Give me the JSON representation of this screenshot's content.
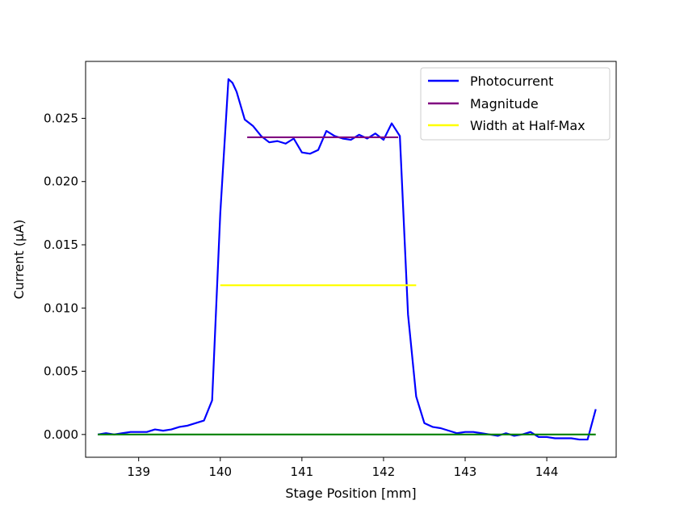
{
  "chart_data": {
    "type": "line",
    "title": "",
    "xlabel": "Stage Position [mm]",
    "ylabel": "Current (μA)",
    "xlim": [
      138.35,
      144.85
    ],
    "ylim": [
      -0.0018,
      0.0295
    ],
    "x_ticks": [
      139,
      140,
      141,
      142,
      143,
      144
    ],
    "x_tick_labels": [
      "139",
      "140",
      "141",
      "142",
      "143",
      "144"
    ],
    "y_ticks": [
      0.0,
      0.005,
      0.01,
      0.015,
      0.02,
      0.025
    ],
    "y_tick_labels": [
      "0.000",
      "0.005",
      "0.010",
      "0.015",
      "0.020",
      "0.025"
    ],
    "grid": false,
    "legend": {
      "placement": "top-right",
      "entries": [
        "Photocurrent",
        "Magnitude",
        "Width at Half-Max"
      ]
    },
    "series": [
      {
        "name": "Photocurrent",
        "color": "#0000ff",
        "x": [
          138.5,
          138.6,
          138.7,
          138.8,
          138.9,
          139.0,
          139.1,
          139.2,
          139.3,
          139.4,
          139.5,
          139.6,
          139.7,
          139.8,
          139.9,
          140.0,
          140.1,
          140.15,
          140.2,
          140.3,
          140.4,
          140.5,
          140.6,
          140.7,
          140.8,
          140.9,
          141.0,
          141.1,
          141.2,
          141.3,
          141.4,
          141.5,
          141.6,
          141.7,
          141.8,
          141.9,
          142.0,
          142.1,
          142.2,
          142.3,
          142.4,
          142.5,
          142.6,
          142.7,
          142.8,
          142.9,
          143.0,
          143.1,
          143.2,
          143.3,
          143.4,
          143.5,
          143.6,
          143.7,
          143.8,
          143.9,
          144.0,
          144.1,
          144.2,
          144.3,
          144.4,
          144.5,
          144.6
        ],
        "y": [
          0.0,
          0.0001,
          0.0,
          0.0001,
          0.0002,
          0.0002,
          0.0002,
          0.0004,
          0.0003,
          0.0004,
          0.0006,
          0.0007,
          0.0009,
          0.0011,
          0.0027,
          0.0175,
          0.0281,
          0.0278,
          0.0271,
          0.0249,
          0.0244,
          0.0236,
          0.0231,
          0.0232,
          0.023,
          0.0234,
          0.0223,
          0.0222,
          0.0225,
          0.024,
          0.0236,
          0.0234,
          0.0233,
          0.0237,
          0.0234,
          0.0238,
          0.0233,
          0.0246,
          0.0236,
          0.0095,
          0.003,
          0.0009,
          0.0006,
          0.0005,
          0.0003,
          0.0001,
          0.0002,
          0.0002,
          0.0001,
          0.0,
          -0.0001,
          0.0001,
          -0.0001,
          0.0,
          0.0002,
          -0.0002,
          -0.0002,
          -0.0003,
          -0.0003,
          -0.0003,
          -0.0004,
          -0.0004,
          0.002
        ]
      },
      {
        "name": "Magnitude",
        "color": "#800080",
        "x": [
          140.33,
          142.18
        ],
        "y": [
          0.0235,
          0.0235
        ]
      },
      {
        "name": "Width at Half-Max",
        "color": "#ffff00",
        "x": [
          140.0,
          142.4
        ],
        "y": [
          0.0118,
          0.0118
        ]
      },
      {
        "color": "#008000",
        "x": [
          138.5,
          144.6
        ],
        "y": [
          0.0,
          0.0
        ]
      }
    ]
  }
}
